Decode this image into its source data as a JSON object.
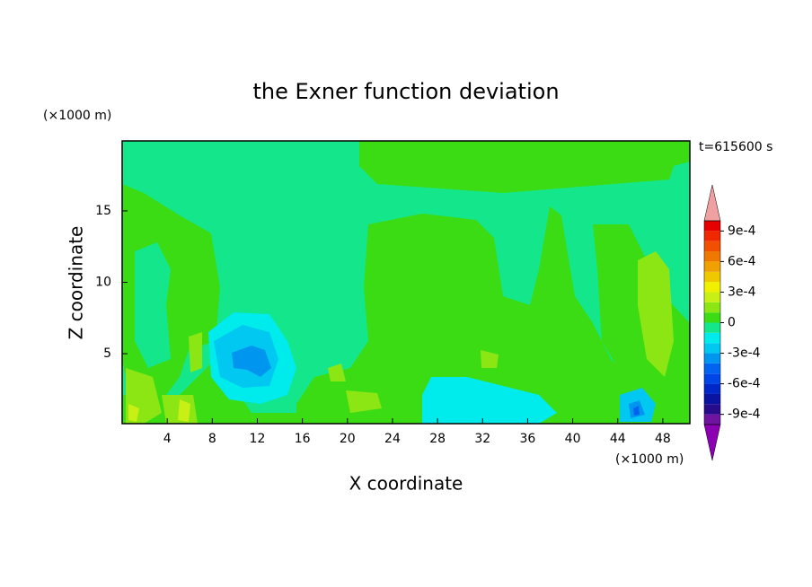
{
  "chart_data": {
    "type": "contour",
    "title": "the Exner function deviation",
    "x_label": "X coordinate",
    "y_label": "Z coordinate",
    "x_unit": "(×1000 m)",
    "y_unit": "(×1000 m)",
    "annotation": "t=615600 s",
    "xlim": [
      0,
      50.4
    ],
    "ylim": [
      0.1,
      19.9
    ],
    "xticks": [
      4,
      8,
      12,
      16,
      20,
      24,
      28,
      32,
      36,
      40,
      44,
      48
    ],
    "yticks": [
      5,
      10,
      15
    ],
    "colorbar": {
      "levels": [
        -0.001,
        -0.0009,
        -0.0008,
        -0.0007,
        -0.0006,
        -0.0005,
        -0.0004,
        -0.0003,
        -0.0002,
        -0.0001,
        0,
        0.0001,
        0.0002,
        0.0003,
        0.0004,
        0.0005,
        0.0006,
        0.0007,
        0.0008,
        0.0009,
        0.001
      ],
      "colors": [
        "#6e14a0",
        "#280a8c",
        "#0a14a0",
        "#0028c8",
        "#0046e6",
        "#0064f0",
        "#0096f0",
        "#00c8f0",
        "#00ebeb",
        "#14e68c",
        "#3cdc14",
        "#8ce614",
        "#c8f014",
        "#f0f000",
        "#f0c800",
        "#f0a000",
        "#f07800",
        "#f05000",
        "#f02800",
        "#e60000"
      ],
      "over_color": "#f0a0a0",
      "under_color": "#8c00b4",
      "ticks": [
        {
          "value": 0.0009,
          "label": "9e-4"
        },
        {
          "value": 0.0006,
          "label": "6e-4"
        },
        {
          "value": 0.0003,
          "label": "3e-4"
        },
        0,
        {
          "value": -0.0003,
          "label": "-3e-4"
        },
        {
          "value": -0.0006,
          "label": "-6e-4"
        },
        {
          "value": -0.0009,
          "label": "-9e-4"
        }
      ]
    }
  }
}
